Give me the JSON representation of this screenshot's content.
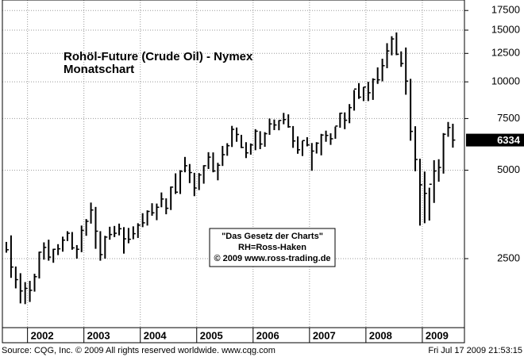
{
  "chart_data": {
    "type": "hlc",
    "title": "Rohöl-Future (Crude Oil) - Nymex",
    "subtitle": "Monatschart",
    "annotation": [
      "\"Das Gesetz der Charts\"",
      "RH=Ross-Haken",
      "© 2009 www.ross-trading.de"
    ],
    "source": "Source: CQG, Inc. © 2009 All rights reserved worldwide. www.cqg.com",
    "timestamp": "Fri Jul 17 2009 21:53:15",
    "last_price": 6334,
    "color": "#000000",
    "log_scale": true,
    "grid": true,
    "ylim": [
      1455,
      19000
    ],
    "yticks": [
      2500,
      5000,
      7500,
      10000,
      12500,
      15000,
      17500
    ],
    "categories": [
      null,
      null,
      null,
      null,
      null,
      "2002",
      null,
      null,
      null,
      null,
      null,
      null,
      null,
      null,
      null,
      null,
      null,
      "2003",
      null,
      null,
      null,
      null,
      null,
      null,
      null,
      null,
      null,
      null,
      null,
      "2004",
      null,
      null,
      null,
      null,
      null,
      null,
      null,
      null,
      null,
      null,
      null,
      "2005",
      null,
      null,
      null,
      null,
      null,
      null,
      null,
      null,
      null,
      null,
      null,
      "2006",
      null,
      null,
      null,
      null,
      null,
      null,
      null,
      null,
      null,
      null,
      null,
      "2007",
      null,
      null,
      null,
      null,
      null,
      null,
      null,
      null,
      null,
      null,
      null,
      "2008",
      null,
      null,
      null,
      null,
      null,
      null,
      null,
      null,
      null,
      null,
      null,
      "2009",
      null,
      null,
      null,
      null,
      null,
      null
    ],
    "high": [
      2850,
      3000,
      2350,
      2230,
      2080,
      2100,
      2220,
      2640,
      2840,
      2900,
      2700,
      2800,
      2970,
      3100,
      3080,
      2780,
      3240,
      3410,
      3880,
      3750,
      3100,
      2990,
      3210,
      3230,
      3290,
      3200,
      3180,
      3220,
      3300,
      3570,
      3650,
      3860,
      3850,
      4200,
      4010,
      4400,
      4880,
      5000,
      5550,
      5250,
      4900,
      4890,
      5200,
      5760,
      5750,
      5300,
      6050,
      6180,
      7080,
      6990,
      6600,
      6230,
      6170,
      6900,
      6790,
      6740,
      7500,
      7440,
      7400,
      7840,
      7750,
      7070,
      6520,
      6300,
      6480,
      6190,
      6230,
      6650,
      6820,
      6680,
      7040,
      7850,
      7870,
      8400,
      9380,
      9900,
      9600,
      10000,
      10280,
      11200,
      11990,
      13540,
      14300,
      14730,
      12700,
      13090,
      10240,
      7060,
      5470,
      4950,
      4360,
      5410,
      5450,
      6690,
      7300,
      7200
    ],
    "low": [
      2620,
      2150,
      1980,
      1760,
      1750,
      1780,
      1930,
      2140,
      2480,
      2460,
      2420,
      2570,
      2640,
      2870,
      2680,
      2500,
      2630,
      2990,
      3290,
      2700,
      2460,
      2500,
      2900,
      2960,
      3000,
      2600,
      2820,
      2910,
      2940,
      3200,
      3240,
      3500,
      3380,
      3740,
      3540,
      3660,
      4150,
      4150,
      4920,
      4520,
      4080,
      4280,
      4500,
      5050,
      4920,
      4620,
      5170,
      5600,
      6000,
      6250,
      5950,
      5500,
      5650,
      5850,
      5900,
      6010,
      6600,
      6850,
      6840,
      7170,
      6980,
      5960,
      5690,
      5590,
      6030,
      4980,
      5700,
      5620,
      6250,
      6100,
      6400,
      6980,
      6900,
      7230,
      7980,
      8750,
      8600,
      8600,
      8680,
      9840,
      10040,
      11130,
      12310,
      12330,
      11250,
      9040,
      6300,
      4960,
      3240,
      3300,
      3370,
      3870,
      4570,
      4870,
      6500,
      5970
    ],
    "close": [
      2680,
      2340,
      2120,
      1940,
      1980,
      1950,
      2170,
      2630,
      2730,
      2530,
      2690,
      2700,
      2890,
      3050,
      2720,
      2690,
      3120,
      3350,
      3660,
      3100,
      2580,
      2960,
      3020,
      3050,
      3160,
      2920,
      2910,
      3040,
      3250,
      3310,
      3620,
      3580,
      3740,
      3990,
      3710,
      4380,
      4210,
      4960,
      5180,
      4910,
      4350,
      4820,
      5180,
      5540,
      4970,
      5200,
      5650,
      6060,
      6890,
      6620,
      5980,
      5730,
      6100,
      6790,
      6140,
      6660,
      7190,
      7130,
      7390,
      7440,
      7030,
      6290,
      5870,
      6310,
      6100,
      5810,
      6180,
      6590,
      6570,
      6400,
      7070,
      7820,
      7400,
      8170,
      9450,
      8870,
      9600,
      9180,
      10180,
      10160,
      11350,
      12740,
      14000,
      12410,
      11550,
      10060,
      6780,
      5440,
      4460,
      4170,
      4480,
      4970,
      5110,
      6630,
      6990,
      6334
    ]
  }
}
